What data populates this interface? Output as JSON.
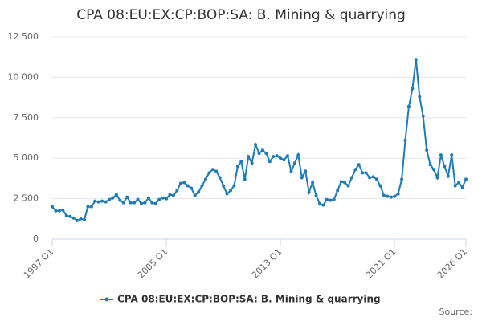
{
  "chart_data": {
    "type": "line",
    "title": "CPA 08:EU:EX:CP:BOP:SA: B. Mining & quarrying",
    "categories": [
      "1997 Q1",
      null,
      null,
      null,
      null,
      null,
      null,
      null,
      null,
      null,
      null,
      null,
      null,
      null,
      null,
      null,
      null,
      null,
      null,
      null,
      null,
      null,
      null,
      null,
      null,
      null,
      null,
      null,
      null,
      null,
      null,
      null,
      "2005 Q1",
      null,
      null,
      null,
      null,
      null,
      null,
      null,
      null,
      null,
      null,
      null,
      null,
      null,
      null,
      null,
      null,
      null,
      null,
      null,
      null,
      null,
      null,
      null,
      null,
      null,
      null,
      null,
      null,
      null,
      null,
      null,
      "2013 Q1",
      null,
      null,
      null,
      null,
      null,
      null,
      null,
      null,
      null,
      null,
      null,
      null,
      null,
      null,
      null,
      null,
      null,
      null,
      null,
      null,
      null,
      null,
      null,
      null,
      null,
      null,
      null,
      null,
      null,
      null,
      null,
      "2021 Q1",
      null,
      null,
      null,
      null,
      null,
      null,
      null,
      null,
      null,
      null,
      null,
      null,
      null,
      null,
      null,
      null,
      null,
      null,
      null,
      "2026 Q1"
    ],
    "series": [
      {
        "name": "CPA 08:EU:EX:CP:BOP:SA: B. Mining & quarrying",
        "color": "#1f7bb6",
        "values": [
          2000,
          1750,
          1750,
          1800,
          1450,
          1400,
          1300,
          1150,
          1250,
          1200,
          2000,
          2000,
          2350,
          2300,
          2350,
          2300,
          2450,
          2550,
          2750,
          2400,
          2250,
          2600,
          2250,
          2250,
          2450,
          2200,
          2250,
          2550,
          2250,
          2200,
          2450,
          2550,
          2500,
          2750,
          2700,
          3000,
          3450,
          3500,
          3300,
          3150,
          2700,
          2900,
          3300,
          3700,
          4100,
          4300,
          4200,
          3800,
          3300,
          2800,
          3000,
          3300,
          4500,
          4800,
          3700,
          5100,
          4700,
          5850,
          5300,
          5500,
          5300,
          4800,
          5100,
          5150,
          5000,
          4900,
          5150,
          4200,
          4700,
          5200,
          3800,
          4200,
          2900,
          3500,
          2700,
          2200,
          2100,
          2450,
          2400,
          2450,
          3000,
          3550,
          3500,
          3300,
          3800,
          4300,
          4600,
          4100,
          4100,
          3800,
          3850,
          3700,
          3300,
          2700,
          2650,
          2600,
          2650,
          2800,
          3700,
          6100,
          8200,
          9300,
          11100,
          8800,
          7600,
          5500,
          4600,
          4300,
          3800,
          5200,
          4500,
          3900,
          5200,
          3300,
          3500,
          3200,
          3700
        ]
      }
    ],
    "ylim": [
      0,
      12500
    ],
    "yticks": [
      0,
      {
        "value": 2500,
        "label": "2 500"
      },
      {
        "value": 5000,
        "label": "5 000"
      },
      {
        "value": 7500,
        "label": "7 500"
      },
      {
        "value": 10000,
        "label": "10 000"
      },
      {
        "value": 12500,
        "label": "12 500"
      }
    ],
    "grid": true,
    "legend": "bottom",
    "source": "Source:"
  }
}
